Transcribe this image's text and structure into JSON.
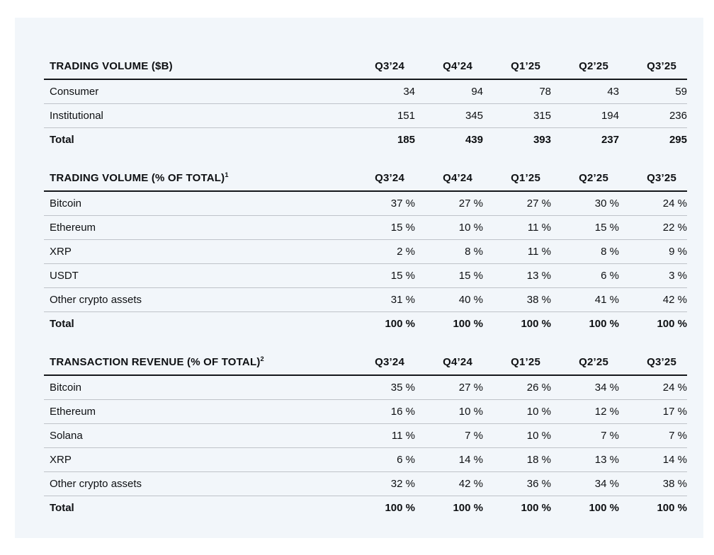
{
  "colors": {
    "card_background": "#f2f6fa",
    "heavy_rule": "#14171b",
    "light_rule": "#bfc3c9",
    "text": "#0e1013",
    "page_background": "#ffffff"
  },
  "columns": [
    "Q3’24",
    "Q4’24",
    "Q1’25",
    "Q2’25",
    "Q3’25"
  ],
  "tables": [
    {
      "title": "TRADING VOLUME ($B)",
      "superscript": "",
      "rows": [
        {
          "label": "Consumer",
          "bold": false,
          "values": [
            "34",
            "94",
            "78",
            "43",
            "59"
          ]
        },
        {
          "label": "Institutional",
          "bold": false,
          "values": [
            "151",
            "345",
            "315",
            "194",
            "236"
          ]
        },
        {
          "label": "Total",
          "bold": true,
          "values": [
            "185",
            "439",
            "393",
            "237",
            "295"
          ]
        }
      ]
    },
    {
      "title": "TRADING VOLUME (% OF TOTAL)",
      "superscript": "1",
      "rows": [
        {
          "label": "Bitcoin",
          "bold": false,
          "values": [
            "37 %",
            "27 %",
            "27 %",
            "30 %",
            "24 %"
          ]
        },
        {
          "label": "Ethereum",
          "bold": false,
          "values": [
            "15 %",
            "10 %",
            "11 %",
            "15 %",
            "22 %"
          ]
        },
        {
          "label": "XRP",
          "bold": false,
          "values": [
            "2 %",
            "8 %",
            "11 %",
            "8 %",
            "9 %"
          ]
        },
        {
          "label": "USDT",
          "bold": false,
          "values": [
            "15 %",
            "15 %",
            "13 %",
            "6 %",
            "3 %"
          ]
        },
        {
          "label": "Other crypto assets",
          "bold": false,
          "values": [
            "31 %",
            "40 %",
            "38 %",
            "41 %",
            "42 %"
          ]
        },
        {
          "label": "Total",
          "bold": true,
          "values": [
            "100 %",
            "100 %",
            "100 %",
            "100 %",
            "100 %"
          ]
        }
      ]
    },
    {
      "title": "TRANSACTION REVENUE (% OF TOTAL)",
      "superscript": "2",
      "rows": [
        {
          "label": "Bitcoin",
          "bold": false,
          "values": [
            "35 %",
            "27 %",
            "26 %",
            "34 %",
            "24 %"
          ]
        },
        {
          "label": "Ethereum",
          "bold": false,
          "values": [
            "16 %",
            "10 %",
            "10 %",
            "12 %",
            "17 %"
          ]
        },
        {
          "label": "Solana",
          "bold": false,
          "values": [
            "11 %",
            "7 %",
            "10 %",
            "7 %",
            "7 %"
          ]
        },
        {
          "label": "XRP",
          "bold": false,
          "values": [
            "6 %",
            "14 %",
            "18 %",
            "13 %",
            "14 %"
          ]
        },
        {
          "label": "Other crypto assets",
          "bold": false,
          "values": [
            "32 %",
            "42 %",
            "36 %",
            "34 %",
            "38 %"
          ]
        },
        {
          "label": "Total",
          "bold": true,
          "values": [
            "100 %",
            "100 %",
            "100 %",
            "100 %",
            "100 %"
          ]
        }
      ]
    }
  ]
}
